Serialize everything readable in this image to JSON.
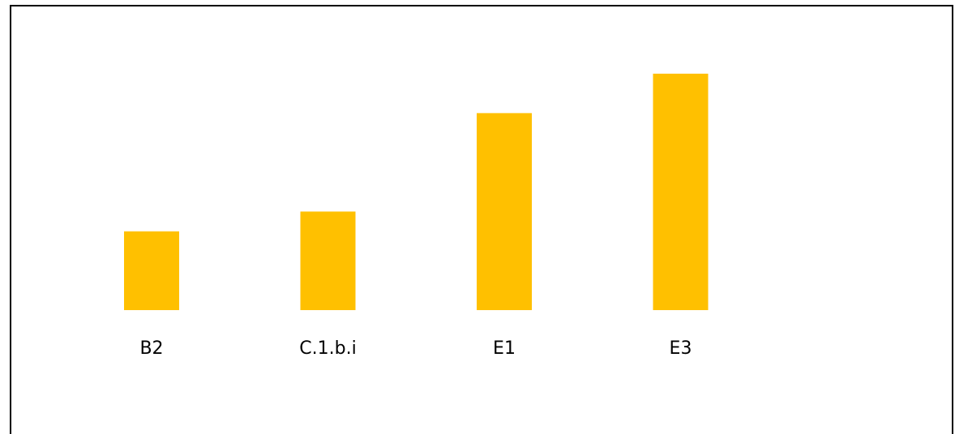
{
  "chart_data": {
    "type": "bar",
    "categories": [
      "B2",
      "C.1.b.i",
      "E1",
      "E3"
    ],
    "values": [
      1.0,
      1.25,
      2.5,
      3.0
    ],
    "title": "",
    "xlabel": "",
    "ylabel": "",
    "ylim": [
      0,
      3.0
    ],
    "grid": false,
    "legend": "none",
    "bar_color": "#FFC000",
    "label_color": "#000000"
  }
}
